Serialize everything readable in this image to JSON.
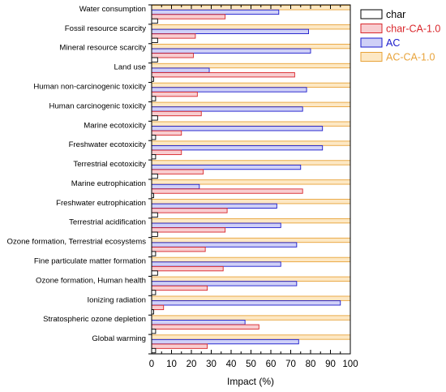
{
  "chart_data": {
    "type": "bar",
    "orientation": "horizontal",
    "title": "",
    "xlabel": "Impact (%)",
    "ylabel": "",
    "xlim": [
      0,
      100
    ],
    "x_ticks": [
      0,
      10,
      20,
      30,
      40,
      50,
      60,
      70,
      80,
      90,
      100
    ],
    "grid": false,
    "legend_position": "top-right",
    "categories": [
      "Water consumption",
      "Fossil resource scarcity",
      "Mineral resource scarcity",
      "Land use",
      "Human non-carcinogenic toxicity",
      "Human carcinogenic toxicity",
      "Marine ecotoxicity",
      "Freshwater ecotoxicity",
      "Terrestrial ecotoxicity",
      "Marine eutrophication",
      "Freshwater eutrophication",
      "Terrestrial acidification",
      "Ozone formation, Terrestrial ecosystems",
      "Fine particulate matter formation",
      "Ozone formation, Human health",
      "Ionizing radiation",
      "Stratospheric ozone depletion",
      "Global warming"
    ],
    "series": [
      {
        "name": "AC-CA-1.0",
        "color": "#e8a33a",
        "fill": "#fde8c4",
        "values": [
          100,
          100,
          100,
          100,
          100,
          100,
          100,
          100,
          100,
          100,
          100,
          100,
          100,
          100,
          100,
          100,
          100,
          100
        ]
      },
      {
        "name": "AC",
        "color": "#1a1acc",
        "fill": "#cfd0f7",
        "values": [
          64,
          79,
          80,
          29,
          78,
          76,
          86,
          86,
          75,
          24,
          63,
          65,
          73,
          65,
          73,
          95,
          47,
          74
        ]
      },
      {
        "name": "char-CA-1.0",
        "color": "#d9262b",
        "fill": "#f8cdd0",
        "values": [
          37,
          22,
          21,
          72,
          23,
          25,
          15,
          15,
          26,
          76,
          38,
          37,
          27,
          36,
          28,
          6,
          54,
          28
        ]
      },
      {
        "name": "char",
        "color": "#000000",
        "fill": "#ffffff",
        "values": [
          3,
          3,
          3,
          1,
          2,
          3,
          2,
          2,
          3,
          1,
          3,
          3,
          2,
          3,
          2,
          1,
          2,
          2
        ]
      }
    ],
    "legend_order": [
      "char",
      "char-CA-1.0",
      "AC",
      "AC-CA-1.0"
    ]
  }
}
